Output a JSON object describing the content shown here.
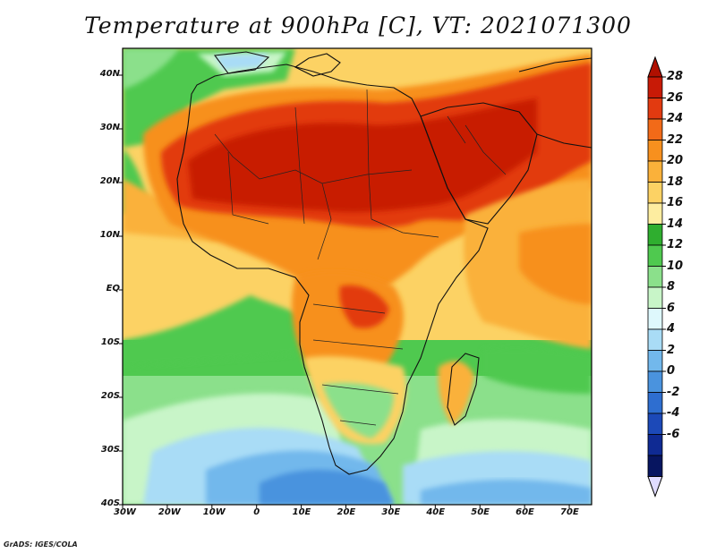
{
  "title": "Temperature at 900hPa [C], VT: 2021071300",
  "credit": "GrADS: IGES/COLA",
  "map": {
    "region": "Africa and Middle East",
    "lon_range": [
      -30,
      75
    ],
    "lat_range": [
      -40,
      45
    ],
    "x_ticks": [
      "30W",
      "20W",
      "10W",
      "0",
      "10E",
      "20E",
      "30E",
      "40E",
      "50E",
      "60E",
      "70E"
    ],
    "y_ticks": [
      "40N",
      "30N",
      "20N",
      "10N",
      "EQ",
      "10S",
      "20S",
      "30S",
      "40S"
    ],
    "coastlines": true,
    "country_borders": true,
    "warmest_region": "Sahara and Arabian Peninsula (26-28 C)",
    "coolest_region": "South Atlantic off South Africa (0-4 C)"
  },
  "colorbar": {
    "labels": [
      "28",
      "26",
      "24",
      "22",
      "20",
      "18",
      "16",
      "14",
      "12",
      "10",
      "8",
      "6",
      "4",
      "2",
      "0",
      "-2",
      "-4",
      "-6"
    ],
    "colors": [
      "#c81a06",
      "#e23a10",
      "#f26a18",
      "#f7901e",
      "#fab13a",
      "#fcd264",
      "#fdeda0",
      "#2fae2f",
      "#4fc94f",
      "#8be08b",
      "#c8f5c8",
      "#def8fc",
      "#a9dcf6",
      "#72b8ec",
      "#4a93de",
      "#2e6ed0",
      "#1c49b8",
      "#0f2a93",
      "#071560"
    ],
    "over_arrow": "#b01000",
    "under_arrow": "#e0dcff"
  }
}
